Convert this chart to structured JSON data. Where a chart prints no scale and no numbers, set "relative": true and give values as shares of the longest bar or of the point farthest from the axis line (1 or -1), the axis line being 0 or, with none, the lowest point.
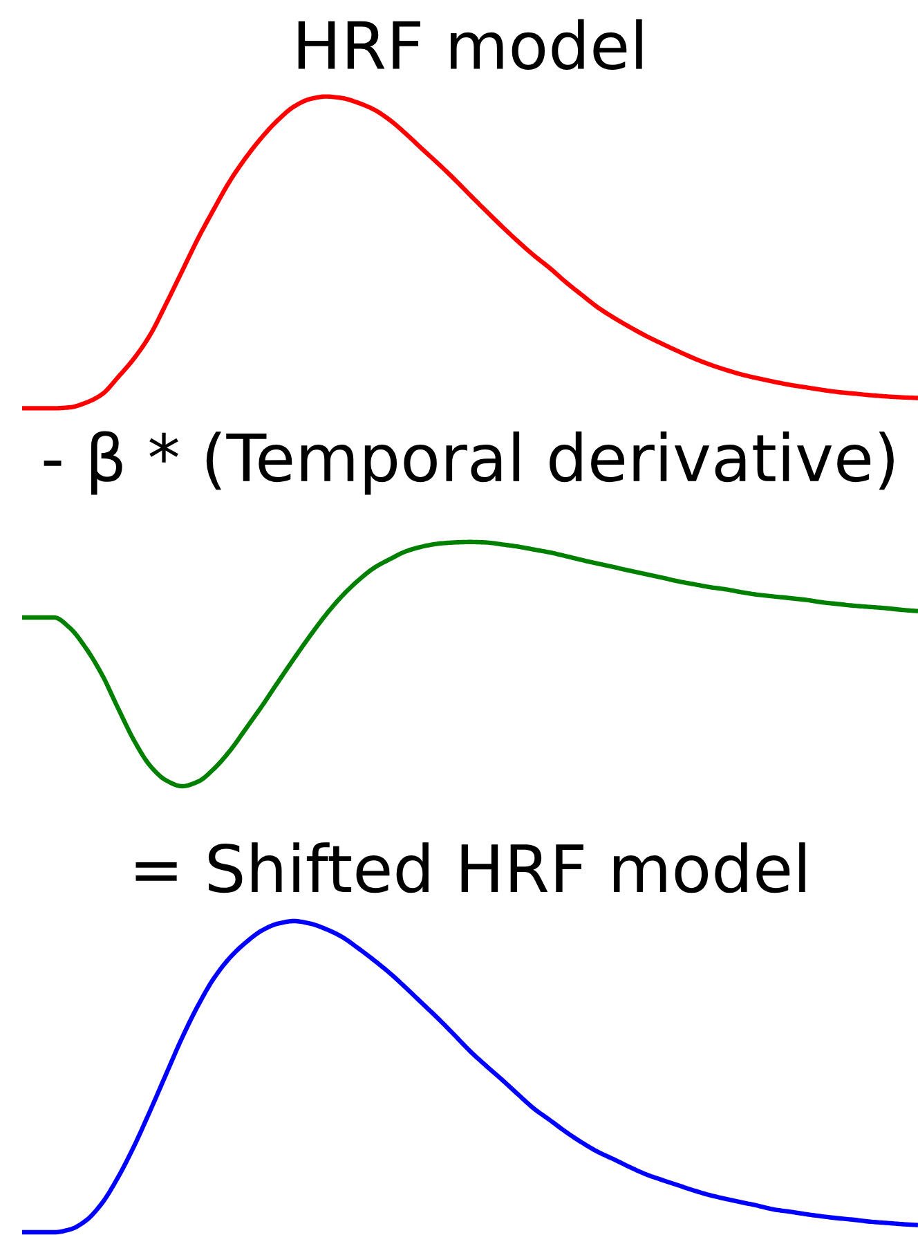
{
  "chart_data": [
    {
      "type": "line",
      "title": "HRF model",
      "relative": true,
      "categories": [
        null,
        null,
        null,
        null,
        null,
        null,
        null,
        null,
        null,
        null,
        null,
        null,
        null,
        null,
        null,
        null,
        null,
        null,
        null,
        null,
        null,
        null,
        null,
        null,
        null,
        null,
        null,
        null,
        null,
        null,
        null,
        null,
        null,
        null,
        null,
        null,
        null,
        null,
        null,
        null,
        null,
        null,
        null,
        null,
        null,
        null,
        null,
        null,
        null,
        null,
        null,
        null,
        null,
        null,
        null,
        null,
        null
      ],
      "series": [
        {
          "color": "#ff0000",
          "values": [
            0,
            0,
            0,
            0.003,
            0.018,
            0.045,
            0.1,
            0.16,
            0.235,
            0.335,
            0.44,
            0.545,
            0.64,
            0.73,
            0.805,
            0.87,
            0.925,
            0.968,
            0.992,
            1.0,
            0.995,
            0.98,
            0.958,
            0.924,
            0.88,
            0.832,
            0.785,
            0.736,
            0.684,
            0.633,
            0.583,
            0.535,
            0.49,
            0.449,
            0.404,
            0.363,
            0.323,
            0.29,
            0.26,
            0.232,
            0.207,
            0.183,
            0.16,
            0.14,
            0.123,
            0.108,
            0.096,
            0.085,
            0.075,
            0.067,
            0.059,
            0.052,
            0.047,
            0.042,
            0.038,
            0.035,
            0.033
          ]
        }
      ]
    },
    {
      "type": "line",
      "title": "- β * (Temporal derivative)",
      "relative": true,
      "categories": [
        null,
        null,
        null,
        null,
        null,
        null,
        null,
        null,
        null,
        null,
        null,
        null,
        null,
        null,
        null,
        null,
        null,
        null,
        null,
        null,
        null,
        null,
        null,
        null,
        null,
        null,
        null,
        null,
        null,
        null,
        null,
        null,
        null,
        null,
        null,
        null,
        null,
        null,
        null,
        null,
        null,
        null,
        null,
        null,
        null,
        null,
        null,
        null,
        null,
        null,
        null,
        null,
        null,
        null,
        null,
        null,
        null
      ],
      "series": [
        {
          "color": "#008000",
          "values": [
            0.691,
            0.691,
            0.691,
            0.647,
            0.564,
            0.456,
            0.319,
            0.187,
            0.084,
            0.024,
            0,
            0.019,
            0.072,
            0.146,
            0.237,
            0.329,
            0.427,
            0.523,
            0.616,
            0.703,
            0.779,
            0.842,
            0.894,
            0.93,
            0.962,
            0.981,
            0.993,
            0.998,
            1.0,
            0.998,
            0.99,
            0.981,
            0.969,
            0.957,
            0.942,
            0.926,
            0.911,
            0.897,
            0.882,
            0.868,
            0.854,
            0.839,
            0.827,
            0.815,
            0.806,
            0.794,
            0.784,
            0.777,
            0.77,
            0.763,
            0.753,
            0.746,
            0.739,
            0.734,
            0.729,
            0.722,
            0.717
          ]
        }
      ]
    },
    {
      "type": "line",
      "title": "= Shifted HRF model",
      "relative": true,
      "categories": [
        null,
        null,
        null,
        null,
        null,
        null,
        null,
        null,
        null,
        null,
        null,
        null,
        null,
        null,
        null,
        null,
        null,
        null,
        null,
        null,
        null,
        null,
        null,
        null,
        null,
        null,
        null,
        null,
        null,
        null,
        null,
        null,
        null,
        null,
        null,
        null,
        null,
        null,
        null,
        null,
        null,
        null,
        null,
        null,
        null,
        null,
        null,
        null,
        null,
        null,
        null,
        null,
        null,
        null,
        null,
        null,
        null
      ],
      "series": [
        {
          "color": "#0000ff",
          "values": [
            0,
            0,
            0,
            0.009,
            0.038,
            0.094,
            0.177,
            0.277,
            0.39,
            0.508,
            0.625,
            0.729,
            0.817,
            0.883,
            0.932,
            0.97,
            0.992,
            1.0,
            0.992,
            0.974,
            0.949,
            0.913,
            0.874,
            0.832,
            0.785,
            0.736,
            0.687,
            0.635,
            0.582,
            0.535,
            0.49,
            0.443,
            0.397,
            0.36,
            0.322,
            0.288,
            0.258,
            0.234,
            0.209,
            0.186,
            0.168,
            0.151,
            0.134,
            0.119,
            0.107,
            0.096,
            0.085,
            0.073,
            0.066,
            0.058,
            0.051,
            0.045,
            0.04,
            0.034,
            0.03,
            0.026,
            0.023
          ]
        }
      ]
    }
  ]
}
